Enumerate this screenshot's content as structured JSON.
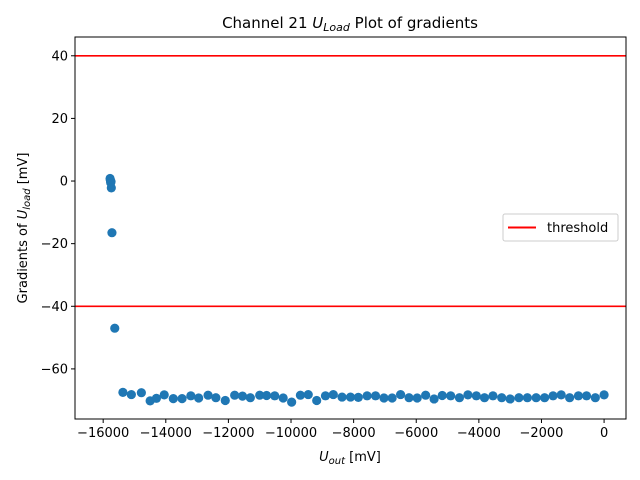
{
  "chart_data": {
    "type": "scatter",
    "title": {
      "prefix": "Channel 21 ",
      "var": "U",
      "sub": "Load",
      "suffix": " Plot of gradients"
    },
    "xlabel": {
      "var": "U",
      "sub": "out",
      "unit": " [mV]"
    },
    "ylabel": {
      "prefix": "Gradients of ",
      "var": "U",
      "sub": "load",
      "unit": " [mV]"
    },
    "xlim": [
      -16900,
      700
    ],
    "ylim": [
      -76,
      46
    ],
    "xticks": [
      -16000,
      -14000,
      -12000,
      -10000,
      -8000,
      -6000,
      -4000,
      -2000,
      0
    ],
    "xtick_labels": [
      "−16000",
      "−14000",
      "−12000",
      "−10000",
      "−8000",
      "−6000",
      "−4000",
      "−2000",
      "0"
    ],
    "yticks": [
      -60,
      -40,
      -20,
      0,
      20,
      40
    ],
    "ytick_labels": [
      "−60",
      "−40",
      "−20",
      "0",
      "20",
      "40"
    ],
    "grid": false,
    "legend": {
      "location": "center-right",
      "entries": [
        {
          "label": "threshold",
          "color": "#ff0000"
        }
      ]
    },
    "thresholds": [
      40,
      -40
    ],
    "threshold_color": "#ff0000",
    "point_color": "#1f77b4",
    "series": [
      {
        "x": [
          -15780,
          -15770,
          -15760,
          -15750,
          -15740,
          -15720,
          -15630,
          -15370,
          -15100,
          -14780,
          -14500,
          -14300,
          -14050,
          -13760,
          -13480,
          -13200,
          -12950,
          -12650,
          -12400,
          -12100,
          -11800,
          -11550,
          -11300,
          -11000,
          -10780,
          -10520,
          -10250,
          -9980,
          -9700,
          -9450,
          -9180,
          -8900,
          -8650,
          -8370,
          -8100,
          -7850,
          -7570,
          -7300,
          -7030,
          -6770,
          -6500,
          -6230,
          -5970,
          -5700,
          -5430,
          -5170,
          -4900,
          -4620,
          -4350,
          -4080,
          -3820,
          -3550,
          -3270,
          -3000,
          -2720,
          -2450,
          -2170,
          -1900,
          -1630,
          -1370,
          -1100,
          -820,
          -560,
          -280,
          0
        ],
        "y": [
          0.8,
          0.3,
          -0.5,
          -0.2,
          -2.2,
          -16.5,
          -47,
          -67.5,
          -68.2,
          -67.6,
          -70.2,
          -69.4,
          -68.3,
          -69.5,
          -69.5,
          -68.6,
          -69.3,
          -68.4,
          -69.2,
          -70.1,
          -68.4,
          -68.7,
          -69.2,
          -68.4,
          -68.5,
          -68.6,
          -69.3,
          -70.6,
          -68.4,
          -68.2,
          -70.1,
          -68.6,
          -68.2,
          -69.0,
          -69.0,
          -69.1,
          -68.6,
          -68.6,
          -69.3,
          -69.3,
          -68.2,
          -69.2,
          -69.3,
          -68.4,
          -69.6,
          -68.5,
          -68.6,
          -69.2,
          -68.3,
          -68.6,
          -69.2,
          -68.6,
          -69.2,
          -69.6,
          -69.2,
          -69.2,
          -69.2,
          -69.2,
          -68.6,
          -68.3,
          -69.2,
          -68.6,
          -68.6,
          -69.2,
          -68.3
        ]
      }
    ]
  }
}
